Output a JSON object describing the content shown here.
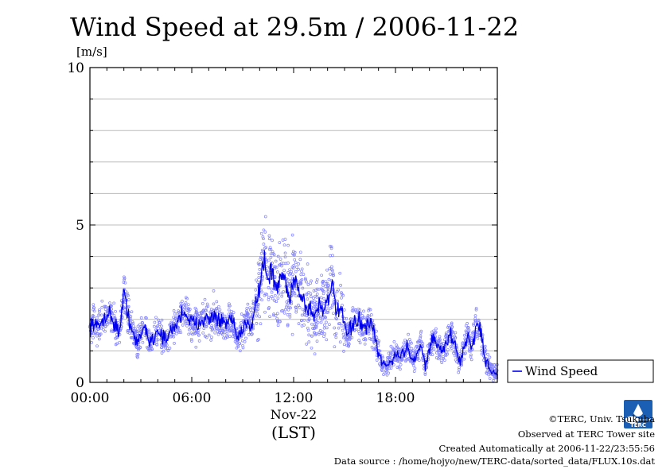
{
  "chart_data": {
    "type": "line",
    "title": "Wind Speed at 29.5m / 2006-11-22",
    "ylabel": "[m/s]",
    "xlabel": "(LST)",
    "date_label": "Nov-22",
    "ylim": [
      0,
      10
    ],
    "xlim": [
      0,
      24
    ],
    "grid": true,
    "legend_position": "right",
    "y_ticks": [
      {
        "value": 0,
        "label": "0"
      },
      {
        "value": 5,
        "label": "5"
      },
      {
        "value": 10,
        "label": "10"
      }
    ],
    "x_ticks": [
      {
        "value": 0,
        "label": "00:00"
      },
      {
        "value": 6,
        "label": "06:00"
      },
      {
        "value": 12,
        "label": "12:00"
      },
      {
        "value": 18,
        "label": "18:00"
      }
    ],
    "series": [
      {
        "name": "Wind Speed",
        "color": "#0000ee",
        "scatter_color": "#8080ff",
        "x": [
          0.0,
          0.25,
          0.5,
          0.75,
          1.0,
          1.25,
          1.5,
          1.75,
          2.0,
          2.25,
          2.5,
          2.75,
          3.0,
          3.25,
          3.5,
          3.75,
          4.0,
          4.25,
          4.5,
          4.75,
          5.0,
          5.25,
          5.5,
          5.75,
          6.0,
          6.25,
          6.5,
          6.75,
          7.0,
          7.25,
          7.5,
          7.75,
          8.0,
          8.25,
          8.5,
          8.75,
          9.0,
          9.25,
          9.5,
          9.75,
          10.0,
          10.25,
          10.5,
          10.75,
          11.0,
          11.25,
          11.5,
          11.75,
          12.0,
          12.25,
          12.5,
          12.75,
          13.0,
          13.25,
          13.5,
          13.75,
          14.0,
          14.25,
          14.5,
          14.75,
          15.0,
          15.25,
          15.5,
          15.75,
          16.0,
          16.25,
          16.5,
          16.75,
          17.0,
          17.25,
          17.5,
          17.75,
          18.0,
          18.25,
          18.5,
          18.75,
          19.0,
          19.25,
          19.5,
          19.75,
          20.0,
          20.25,
          20.5,
          20.75,
          21.0,
          21.25,
          21.5,
          21.75,
          22.0,
          22.25,
          22.5,
          22.75,
          23.0,
          23.25,
          23.5,
          23.75
        ],
        "values": [
          1.8,
          1.9,
          1.7,
          2.0,
          2.2,
          2.1,
          1.8,
          1.6,
          2.8,
          2.2,
          1.6,
          1.2,
          1.5,
          1.8,
          1.3,
          1.4,
          1.7,
          1.5,
          1.3,
          1.6,
          1.8,
          2.0,
          2.3,
          2.1,
          1.9,
          1.8,
          2.0,
          2.1,
          1.9,
          2.2,
          2.0,
          1.9,
          1.8,
          2.0,
          1.7,
          1.4,
          1.6,
          2.0,
          1.8,
          2.5,
          3.0,
          4.0,
          3.2,
          3.6,
          2.8,
          3.5,
          3.2,
          2.6,
          3.4,
          3.0,
          2.7,
          2.4,
          2.3,
          2.1,
          2.5,
          2.3,
          2.7,
          3.1,
          2.2,
          2.4,
          1.7,
          1.5,
          1.9,
          2.0,
          1.8,
          1.7,
          1.9,
          1.5,
          0.9,
          0.6,
          0.5,
          0.7,
          0.9,
          0.8,
          1.0,
          1.1,
          0.7,
          0.9,
          1.2,
          0.5,
          1.1,
          1.4,
          1.2,
          0.9,
          1.3,
          1.5,
          1.2,
          0.6,
          1.0,
          1.5,
          1.1,
          1.8,
          1.7,
          0.8,
          0.5,
          0.3
        ]
      }
    ]
  },
  "footer": {
    "copyright": "©TERC, Univ. Tsukuba",
    "observed": "Observed at TERC Tower site",
    "created": "Created Automatically at 2006-11-22/23:55:56",
    "source": "Data source : /home/hojyo/new/TERC-data/sorted_data/FLUX.10s.dat"
  },
  "logo": {
    "text": "TERC"
  }
}
